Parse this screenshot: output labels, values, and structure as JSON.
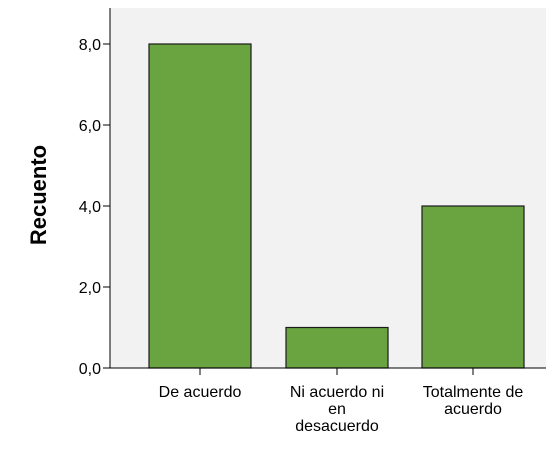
{
  "chart_data": {
    "type": "bar",
    "categories": [
      [
        "De acuerdo"
      ],
      [
        "Ni acuerdo ni",
        "en",
        "desacuerdo"
      ],
      [
        "Totalmente de",
        "acuerdo"
      ]
    ],
    "values": [
      8,
      1,
      4
    ],
    "title": "",
    "xlabel": "",
    "ylabel": "Recuento",
    "ylim": [
      0,
      8.1
    ],
    "y_ticks": [
      0,
      2,
      4,
      6,
      8
    ],
    "y_tick_labels": [
      "0,0",
      "2,0",
      "4,0",
      "6,0",
      "8,0"
    ],
    "grid": false,
    "legend": "none"
  },
  "colors": {
    "plot_background": "#f2f2f2",
    "bar_fill": "#6aa441",
    "bar_stroke": "#1a1a1a",
    "axis": "#000000",
    "text": "#000000"
  }
}
